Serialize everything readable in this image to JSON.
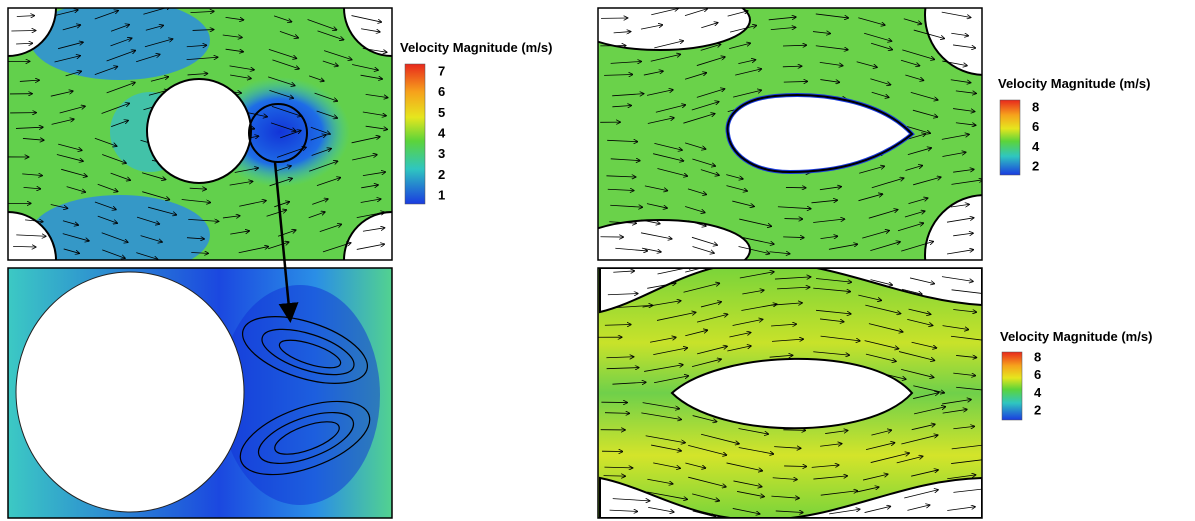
{
  "colorbars": [
    {
      "title": "Velocity Magnitude (m/s)",
      "ticks": [
        7,
        6,
        5,
        4,
        3,
        2,
        1
      ]
    },
    {
      "title": "Velocity Magnitude (m/s)",
      "ticks": [
        8,
        6,
        4,
        2
      ]
    },
    {
      "title": "Velocity Magnitude (m/s)",
      "ticks": [
        8,
        6,
        4,
        2
      ]
    }
  ]
}
